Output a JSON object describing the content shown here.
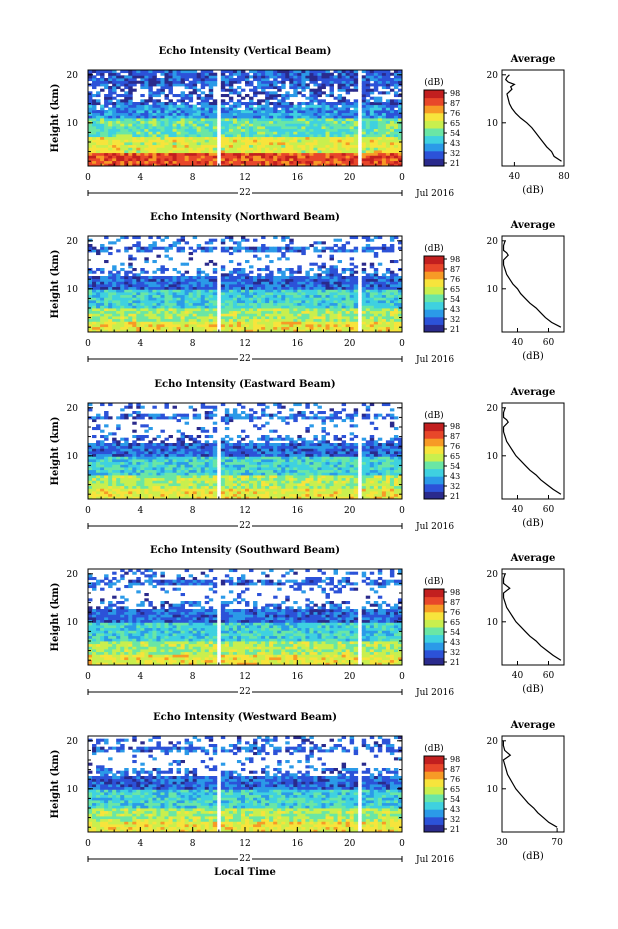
{
  "panels": [
    {
      "title": "Echo Intensity (Vertical Beam)"
    },
    {
      "title": "Echo Intensity (Northward Beam)"
    },
    {
      "title": "Echo Intensity (Eastward Beam)"
    },
    {
      "title": "Echo Intensity (Southward Beam)"
    },
    {
      "title": "Echo Intensity (Westward Beam)"
    }
  ],
  "common": {
    "ylabel": "Height (km)",
    "day_label": "22",
    "month_label": "Jul 2016",
    "xlabel": "Local Time",
    "colorbar_unit": "(dB)",
    "avg_title": "Average",
    "avg_xlabel": "(dB)"
  },
  "chart_data": [
    {
      "type": "heatmap",
      "title": "Echo Intensity (Vertical Beam)",
      "xlabel": "",
      "ylabel": "Height (km)",
      "x_ticks": [
        "0",
        "4",
        "8",
        "12",
        "16",
        "20",
        "0"
      ],
      "y_ticks": [
        "20",
        "10"
      ],
      "xlim": [
        0,
        24
      ],
      "ylim": [
        1,
        21
      ],
      "data_gaps_hours": [
        10.0,
        20.8
      ],
      "colorbar": {
        "label": "(dB)",
        "ticks": [
          "98",
          "87",
          "76",
          "65",
          "54",
          "43",
          "32",
          "21"
        ]
      },
      "average_profile": {
        "title": "Average",
        "xlabel": "(dB)",
        "x_ticks": [
          "40",
          "80"
        ],
        "y_ticks": [
          "20",
          "10"
        ],
        "xlim": [
          30,
          80
        ],
        "height_km": [
          2,
          3,
          4,
          5,
          6,
          7,
          8,
          9,
          10,
          11,
          12,
          13,
          14,
          15,
          16,
          17,
          17.5,
          18,
          18.5,
          19,
          19.5,
          20
        ],
        "db": [
          78,
          72,
          70,
          66,
          63,
          60,
          57,
          54,
          50,
          45,
          41,
          38,
          36,
          35,
          34,
          38,
          37,
          40,
          35,
          33,
          34,
          36
        ]
      }
    },
    {
      "type": "heatmap",
      "title": "Echo Intensity (Northward Beam)",
      "xlabel": "",
      "ylabel": "Height (km)",
      "x_ticks": [
        "0",
        "4",
        "8",
        "12",
        "16",
        "20",
        "0"
      ],
      "y_ticks": [
        "20",
        "10"
      ],
      "xlim": [
        0,
        24
      ],
      "ylim": [
        1,
        21
      ],
      "data_gaps_hours": [
        10.0,
        20.8
      ],
      "colorbar": {
        "label": "(dB)",
        "ticks": [
          "98",
          "87",
          "76",
          "65",
          "54",
          "43",
          "32",
          "21"
        ]
      },
      "average_profile": {
        "title": "Average",
        "xlabel": "(dB)",
        "x_ticks": [
          "40",
          "60"
        ],
        "y_ticks": [
          "20",
          "10"
        ],
        "xlim": [
          30,
          70
        ],
        "height_km": [
          2,
          3,
          4,
          5,
          6,
          7,
          8,
          9,
          10,
          11,
          12,
          13,
          14,
          15,
          16,
          17,
          17.5,
          18,
          19,
          20
        ],
        "db": [
          68,
          62,
          58,
          55,
          52,
          48,
          45,
          42,
          40,
          37,
          35,
          33,
          32,
          31,
          31,
          34,
          33,
          31,
          31,
          32
        ]
      }
    },
    {
      "type": "heatmap",
      "title": "Echo Intensity (Eastward Beam)",
      "xlabel": "",
      "ylabel": "Height (km)",
      "x_ticks": [
        "0",
        "4",
        "8",
        "12",
        "16",
        "20",
        "0"
      ],
      "y_ticks": [
        "20",
        "10"
      ],
      "xlim": [
        0,
        24
      ],
      "ylim": [
        1,
        21
      ],
      "data_gaps_hours": [
        10.0,
        20.8
      ],
      "colorbar": {
        "label": "(dB)",
        "ticks": [
          "98",
          "87",
          "76",
          "65",
          "54",
          "43",
          "32",
          "21"
        ]
      },
      "average_profile": {
        "title": "Average",
        "xlabel": "(dB)",
        "x_ticks": [
          "40",
          "60"
        ],
        "y_ticks": [
          "20",
          "10"
        ],
        "xlim": [
          30,
          70
        ],
        "height_km": [
          2,
          3,
          4,
          5,
          6,
          7,
          8,
          9,
          10,
          11,
          12,
          13,
          14,
          15,
          16,
          17,
          17.5,
          18,
          19,
          20
        ],
        "db": [
          68,
          63,
          59,
          55,
          52,
          48,
          45,
          42,
          39,
          37,
          35,
          33,
          32,
          31,
          31,
          34,
          33,
          31,
          31,
          32
        ]
      }
    },
    {
      "type": "heatmap",
      "title": "Echo Intensity (Southward Beam)",
      "xlabel": "",
      "ylabel": "Height (km)",
      "x_ticks": [
        "0",
        "4",
        "8",
        "12",
        "16",
        "20",
        "0"
      ],
      "y_ticks": [
        "20",
        "10"
      ],
      "xlim": [
        0,
        24
      ],
      "ylim": [
        1,
        21
      ],
      "data_gaps_hours": [
        10.0,
        20.8
      ],
      "colorbar": {
        "label": "(dB)",
        "ticks": [
          "98",
          "87",
          "76",
          "65",
          "54",
          "43",
          "32",
          "21"
        ]
      },
      "average_profile": {
        "title": "Average",
        "xlabel": "(dB)",
        "x_ticks": [
          "40",
          "60"
        ],
        "y_ticks": [
          "20",
          "10"
        ],
        "xlim": [
          30,
          70
        ],
        "height_km": [
          2,
          3,
          4,
          5,
          6,
          7,
          8,
          9,
          10,
          11,
          12,
          13,
          14,
          15,
          16,
          17,
          17.5,
          18,
          19,
          20
        ],
        "db": [
          68,
          63,
          59,
          55,
          52,
          48,
          45,
          42,
          39,
          37,
          35,
          33,
          32,
          31,
          31,
          35,
          33,
          31,
          31,
          32
        ]
      }
    },
    {
      "type": "heatmap",
      "title": "Echo Intensity (Westward Beam)",
      "xlabel": "Local Time",
      "ylabel": "Height (km)",
      "x_ticks": [
        "0",
        "4",
        "8",
        "12",
        "16",
        "20",
        "0"
      ],
      "y_ticks": [
        "20",
        "10"
      ],
      "xlim": [
        0,
        24
      ],
      "ylim": [
        1,
        21
      ],
      "data_gaps_hours": [
        10.0,
        20.8
      ],
      "colorbar": {
        "label": "(dB)",
        "ticks": [
          "98",
          "87",
          "76",
          "65",
          "54",
          "43",
          "32",
          "21"
        ]
      },
      "average_profile": {
        "title": "Average",
        "xlabel": "(dB)",
        "x_ticks": [
          "30",
          "70"
        ],
        "y_ticks": [
          "20",
          "10"
        ],
        "xlim": [
          30,
          75
        ],
        "height_km": [
          2,
          3,
          4,
          5,
          6,
          7,
          8,
          9,
          10,
          11,
          12,
          13,
          14,
          15,
          16,
          17,
          17.5,
          18,
          19,
          20
        ],
        "db": [
          70,
          64,
          60,
          56,
          53,
          49,
          46,
          43,
          40,
          38,
          36,
          34,
          33,
          32,
          31,
          36,
          34,
          32,
          31,
          31
        ]
      }
    }
  ],
  "colors": {
    "scale": [
      "#2a2a8c",
      "#2c52d8",
      "#2b9ae8",
      "#3fd1e0",
      "#6ae6a5",
      "#c9ef4e",
      "#f7e43c",
      "#f79a26",
      "#e8472a",
      "#c21f1f"
    ]
  }
}
